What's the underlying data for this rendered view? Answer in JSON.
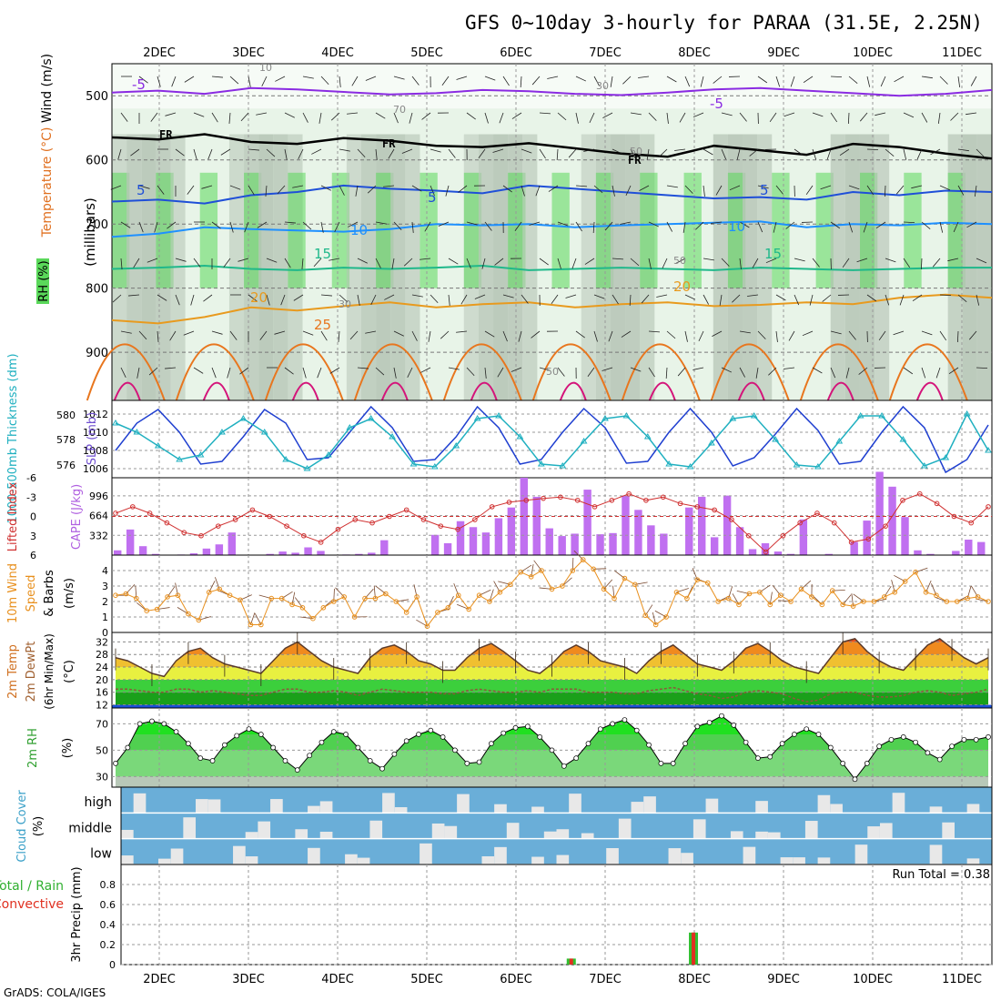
{
  "title": "GFS 0~10day 3-hourly for PARAA (31.5E, 2.25N)",
  "footer": "GrADS: COLA/IGES",
  "colors": {
    "rh_green": "#5ad85a",
    "rh_light": "#e8f4e8",
    "rh_grey": "#b4c3b4",
    "t_purple": "#8a2be2",
    "t_blue": "#1f4fd8",
    "t_lightblue": "#1e90ff",
    "t_teal": "#1fb88a",
    "t_orange": "#e89a1e",
    "t_darkorange": "#e8761e",
    "t_magenta": "#d4147a",
    "slp": "#1f3fd0",
    "thick": "#20b0c0",
    "li": "#d03030",
    "cape": "#c070f0",
    "wind": "#e8901e",
    "cloud_blue": "#6aaed8",
    "cloud_grey": "#e8e8e8",
    "rain_green": "#30c030",
    "rain_red": "#e03020"
  },
  "chart_data": [
    {
      "type": "heatmap",
      "name": "upper",
      "ylabel_parts": [
        "Wind (m/s)",
        "Temperature (°C)",
        "RH (%)"
      ],
      "yaxis_title": "(millibars)",
      "yticks": [
        500,
        600,
        700,
        800,
        900
      ],
      "ylim": [
        450,
        975
      ],
      "top_dates": [
        "2DEC",
        "3DEC",
        "4DEC",
        "5DEC",
        "6DEC",
        "7DEC",
        "8DEC",
        "9DEC",
        "10DEC",
        "11DEC"
      ],
      "contour_labels": {
        "rh": [
          "10",
          "30",
          "70",
          "50",
          "30",
          "50",
          "50"
        ],
        "freezing": [
          "FR",
          "FR",
          "FR"
        ],
        "temperature": [
          "-5",
          "-5",
          "5",
          "5",
          "5",
          "10",
          "10",
          "15",
          "15",
          "20",
          "20",
          "25"
        ]
      },
      "isotherms": [
        {
          "name": "-5",
          "levels": [
            495,
            492,
            497,
            488,
            490,
            494,
            498,
            496,
            491,
            493,
            497,
            499,
            495,
            490,
            488,
            492,
            496,
            500,
            497,
            491
          ]
        },
        {
          "name": "FR",
          "levels": [
            565,
            568,
            560,
            572,
            575,
            566,
            570,
            578,
            580,
            574,
            582,
            590,
            595,
            578,
            585,
            592,
            575,
            580,
            590,
            598
          ]
        },
        {
          "name": "5",
          "levels": [
            665,
            662,
            668,
            655,
            650,
            640,
            645,
            648,
            652,
            640,
            645,
            650,
            655,
            660,
            658,
            662,
            650,
            655,
            648,
            650
          ]
        },
        {
          "name": "10",
          "levels": [
            720,
            715,
            705,
            708,
            710,
            712,
            708,
            700,
            702,
            700,
            705,
            702,
            700,
            698,
            696,
            705,
            700,
            702,
            698,
            700
          ]
        },
        {
          "name": "15",
          "levels": [
            770,
            768,
            765,
            770,
            772,
            768,
            770,
            768,
            765,
            772,
            770,
            768,
            770,
            772,
            768,
            770,
            772,
            770,
            768,
            768
          ]
        },
        {
          "name": "20",
          "levels": [
            850,
            855,
            845,
            830,
            835,
            828,
            822,
            830,
            825,
            822,
            830,
            825,
            822,
            828,
            826,
            822,
            825,
            815,
            810,
            815
          ]
        }
      ]
    },
    {
      "type": "line",
      "name": "slp-thickness",
      "ylabel_left": "1000-500mb Thickness (dm)",
      "ylabel_right": "SLP (mb)",
      "yticks_left": [
        576,
        578,
        580
      ],
      "yticks_right": [
        1006,
        1008,
        1010,
        1012
      ],
      "ylim_right": [
        1005,
        1013.5
      ],
      "series": [
        {
          "name": "SLP",
          "values": [
            1008,
            1011,
            1012.5,
            1010,
            1006.5,
            1006.8,
            1009.5,
            1012.5,
            1011,
            1007,
            1007.2,
            1010,
            1012.8,
            1010.5,
            1006.8,
            1007,
            1009.5,
            1012.8,
            1010.5,
            1006.5,
            1007,
            1010,
            1012.6,
            1010.5,
            1006.6,
            1006.8,
            1010,
            1012.6,
            1010,
            1006.3,
            1007.2,
            1009.8,
            1012.6,
            1010.2,
            1006.5,
            1006.8,
            1010,
            1012.8,
            1010.5,
            1005.6,
            1007,
            1010.8
          ]
        },
        {
          "name": "Thickness",
          "values": [
            1011,
            1010,
            1008.5,
            1007,
            1007.5,
            1010,
            1011.5,
            1010,
            1007,
            1006,
            1007.5,
            1010.5,
            1011.5,
            1009.5,
            1006.5,
            1006.2,
            1008.5,
            1011.5,
            1011.8,
            1009.5,
            1006.5,
            1006.3,
            1009,
            1011.5,
            1011.8,
            1009.5,
            1006.5,
            1006.2,
            1008.8,
            1011.5,
            1011.8,
            1009.2,
            1006.4,
            1006.2,
            1009,
            1011.8,
            1011.8,
            1009.2,
            1006.3,
            1007.2,
            1012,
            1008
          ]
        }
      ]
    },
    {
      "type": "bar",
      "name": "cape-li",
      "ylabel_left": "Lifted Index",
      "ylabel_right": "CAPE (J/kg)",
      "yticks_left": [
        "-6",
        "-3",
        "0",
        "3",
        "6"
      ],
      "yticks_right": [
        332,
        664,
        996
      ],
      "li_lim": [
        -6,
        6
      ],
      "cape_lim": [
        0,
        1300
      ],
      "li_values": [
        -0.5,
        -1.5,
        -0.5,
        1,
        2.5,
        3,
        1.5,
        0.5,
        -1,
        0,
        1.5,
        3,
        4,
        2,
        0.5,
        1,
        0,
        -1,
        0.5,
        1.5,
        2,
        0.5,
        -1.5,
        -2.2,
        -2.5,
        -2.8,
        -3,
        -2.5,
        -1.5,
        -2.5,
        -3.5,
        -2.5,
        -3,
        -2,
        -1.5,
        -1,
        0.5,
        3,
        5.5,
        3,
        1,
        -0.5,
        1,
        4,
        3.5,
        1.5,
        -2.5,
        -3.5,
        -2,
        0,
        1,
        -1.5
      ],
      "cape_values": [
        80,
        430,
        150,
        20,
        0,
        10,
        30,
        110,
        180,
        380,
        0,
        0,
        20,
        60,
        40,
        130,
        70,
        0,
        10,
        20,
        40,
        250,
        0,
        0,
        0,
        340,
        200,
        570,
        470,
        380,
        620,
        800,
        1300,
        980,
        450,
        320,
        360,
        1100,
        350,
        370,
        1000,
        760,
        500,
        360,
        0,
        800,
        980,
        300,
        1000,
        470,
        100,
        200,
        60,
        20,
        600,
        0,
        20,
        0,
        220,
        580,
        1400,
        1150,
        640,
        80,
        20,
        0,
        70,
        260,
        220
      ]
    },
    {
      "type": "line",
      "name": "wind10m",
      "ylabel": "10m Wind Speed & Barbs (m/s)",
      "yticks": [
        0,
        1,
        2,
        3,
        4
      ],
      "ylim": [
        0,
        5
      ],
      "values": [
        2.4,
        2.5,
        2.2,
        1.4,
        1.5,
        2.3,
        2.4,
        1.2,
        0.8,
        2.6,
        2.8,
        2.4,
        2.1,
        0.5,
        0.5,
        2.2,
        2.2,
        1.8,
        1.6,
        0.9,
        1.6,
        2.0,
        2.3,
        1.0,
        2.2,
        2.2,
        2.5,
        2.0,
        1.3,
        2.3,
        0.4,
        1.3,
        1.6,
        2.4,
        1.5,
        2.4,
        2.0,
        2.6,
        3.1,
        3.9,
        3.6,
        4.0,
        2.8,
        3.0,
        4.0,
        4.7,
        4.1,
        2.8,
        2.2,
        3.5,
        3.1,
        1.1,
        0.5,
        1.0,
        2.6,
        2.2,
        3.4,
        3.2,
        2.0,
        2.2,
        1.8,
        2.5,
        2.6,
        1.8,
        2.4,
        2.0,
        2.8,
        2.3,
        1.8,
        2.7,
        1.8,
        1.7,
        2.0,
        2.0,
        2.3,
        2.6,
        3.3,
        3.9,
        2.6,
        2.4,
        2.0,
        2.0,
        2.2,
        2.3,
        2.0
      ]
    },
    {
      "type": "area",
      "name": "temp2m",
      "ylabel": "2m Temp 2m DewPt (6hr Min/Max) (°C)",
      "yticks": [
        12,
        16,
        20,
        24,
        28,
        32
      ],
      "ylim": [
        11,
        35
      ],
      "temp": [
        27,
        26,
        24,
        22,
        21,
        26,
        29,
        30,
        27,
        25,
        24,
        23,
        22,
        26,
        30,
        32,
        29,
        26,
        24,
        23,
        22,
        27,
        30,
        31,
        29,
        26,
        25,
        23,
        23,
        27,
        30,
        31.5,
        29,
        26,
        23,
        22,
        25,
        29,
        31,
        29,
        26,
        25,
        24,
        22,
        26,
        29,
        31,
        28,
        25,
        24,
        23,
        26,
        30,
        31.5,
        29,
        26,
        24,
        23,
        22,
        27,
        32,
        33,
        29,
        26,
        24,
        23,
        27,
        31,
        33,
        30,
        27,
        25,
        27
      ],
      "dewpt": [
        17,
        17,
        16.5,
        16,
        16,
        17,
        17,
        16,
        16.5,
        16,
        15.5,
        15,
        15,
        16,
        17,
        17,
        16,
        16,
        16.5,
        16,
        15,
        16,
        17,
        16.5,
        16,
        16,
        16,
        15.5,
        15.5,
        16.5,
        17,
        16.5,
        16,
        16,
        16.5,
        16,
        17,
        17,
        17,
        16,
        16,
        16,
        15.5,
        15.5,
        16.5,
        17,
        17.5,
        16.5,
        15.5,
        15,
        14,
        14.5,
        16,
        16.5,
        16,
        15.5,
        14,
        13,
        13.5,
        15.5,
        16,
        16,
        15,
        14.5,
        14.5,
        15,
        16,
        16.5,
        16,
        15,
        15.5,
        16,
        17
      ],
      "bands": [
        12,
        16,
        20,
        24,
        28,
        32
      ]
    },
    {
      "type": "area",
      "name": "rh2m",
      "ylabel": "2m RH (%)",
      "yticks": [
        30,
        50,
        70
      ],
      "ylim": [
        22,
        82
      ],
      "values": [
        40,
        52,
        70,
        72,
        70,
        64,
        55,
        44,
        42,
        54,
        61,
        66,
        62,
        52,
        42,
        35,
        46,
        56,
        64,
        62,
        52,
        42,
        36,
        47,
        57,
        62,
        65,
        60,
        50,
        40,
        41,
        55,
        63,
        67,
        68,
        60,
        50,
        38,
        44,
        55,
        66,
        70,
        73,
        65,
        54,
        40,
        40,
        55,
        68,
        71,
        76,
        69,
        56,
        44,
        45,
        55,
        62,
        66,
        62,
        52,
        40,
        28,
        40,
        53,
        58,
        60,
        56,
        48,
        43,
        53,
        58,
        58,
        60
      ]
    },
    {
      "type": "heatmap",
      "name": "cloud",
      "ylabel": "Cloud Cover (%)",
      "rows": [
        "high",
        "middle",
        "low"
      ]
    },
    {
      "type": "bar",
      "name": "precip",
      "ylabel_left": "Total / Rain Convective",
      "ylabel": "3hr Precip (mm)",
      "yticks": [
        "0",
        "0.2",
        "0.4",
        "0.6",
        "0.8"
      ],
      "ylim": [
        0,
        1.0
      ],
      "run_total": "Run Total = 0.38",
      "bottom_dates": [
        "2DEC",
        "3DEC",
        "4DEC",
        "5DEC",
        "6DEC",
        "7DEC",
        "8DEC",
        "9DEC",
        "10DEC",
        "11DEC"
      ],
      "bars": [
        {
          "x": 6.62,
          "value": 0.06
        },
        {
          "x": 7.99,
          "value": 0.32
        }
      ]
    }
  ]
}
